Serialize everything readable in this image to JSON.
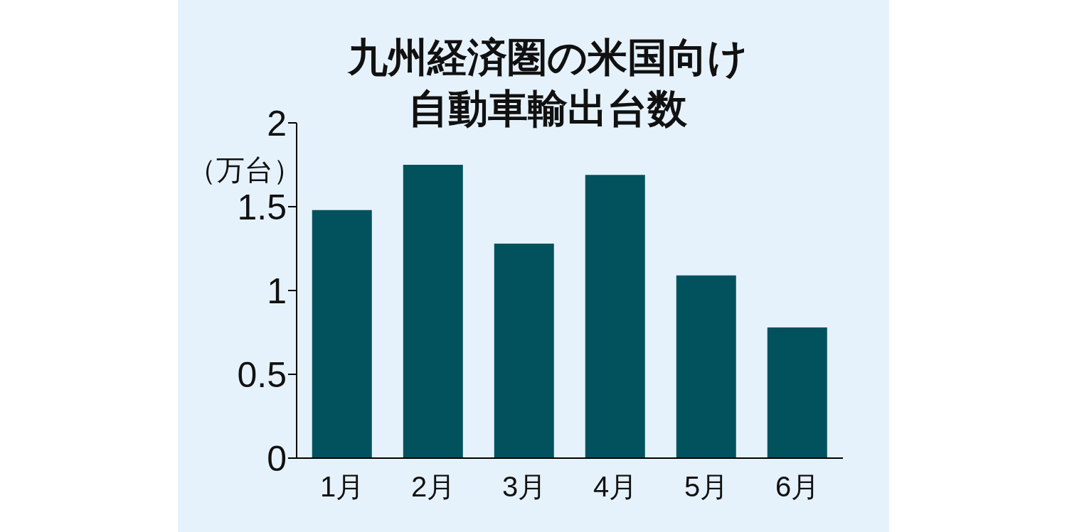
{
  "chart_data": {
    "type": "bar",
    "title": "九州経済圏の米国向け自動車輸出台数",
    "ylabel": "（万台）",
    "categories": [
      "1月",
      "2月",
      "3月",
      "4月",
      "5月",
      "6月"
    ],
    "values": [
      1.48,
      1.75,
      1.28,
      1.69,
      1.09,
      0.78
    ],
    "color": "#02525e",
    "ylim": [
      0,
      2
    ],
    "yticks": [
      0,
      0.5,
      1,
      1.5,
      2
    ]
  }
}
